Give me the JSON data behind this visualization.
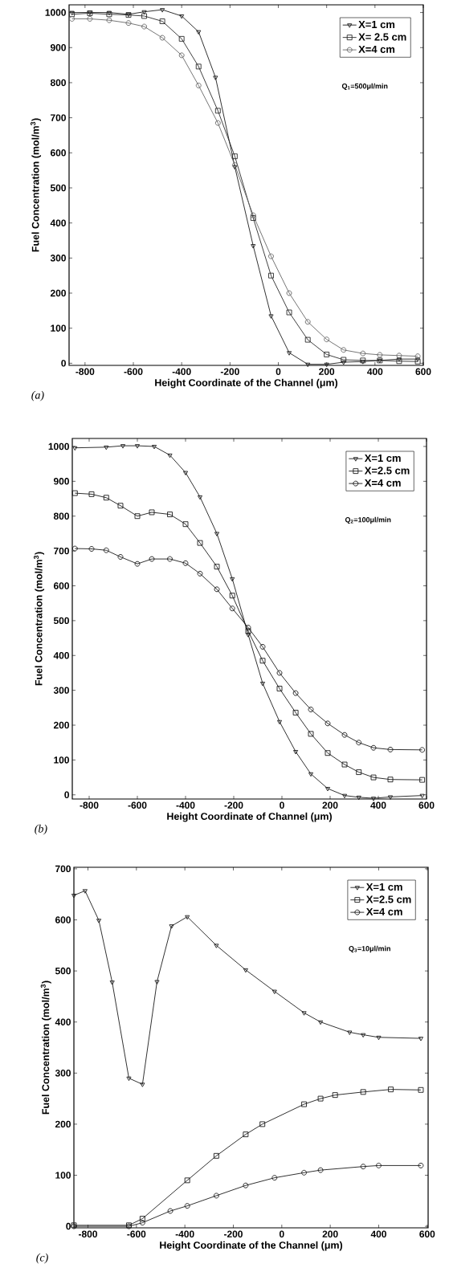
{
  "chart_data": [
    {
      "type": "line",
      "xlabel": "Height Coordinate of the Channel (μm)",
      "ylabel": "Fuel Concentration (mol/m$^{3}$)",
      "xlim": [
        -866,
        600
      ],
      "ylim": [
        -6,
        1022
      ],
      "xticks": [
        -800,
        -600,
        -400,
        -200,
        0,
        200,
        400,
        600
      ],
      "yticks": [
        0,
        100,
        200,
        300,
        400,
        500,
        600,
        700,
        800,
        900,
        1000
      ],
      "legend": "top right",
      "grid": false,
      "annotations": [
        "Q$_{1}$=500μl/min",
        "(a)"
      ],
      "series": [
        {
          "name": "X=1 cm",
          "color": "#1a1a1a",
          "marker": "triangle",
          "x": [
            -854,
            -780,
            -700,
            -620,
            -555,
            -480,
            -400,
            -330,
            -260,
            -180,
            -104,
            -30,
            45,
            122,
            200,
            270,
            350,
            420,
            500,
            577
          ],
          "values": [
            1000,
            1000,
            1000,
            995,
            1002,
            1008,
            990,
            945,
            815,
            560,
            335,
            135,
            30,
            -3,
            -3,
            3,
            5,
            8,
            12,
            12
          ]
        },
        {
          "name": "X= 2.5 cm",
          "color": "#2a2a2a",
          "marker": "square",
          "x": [
            -854,
            -780,
            -700,
            -620,
            -555,
            -480,
            -400,
            -330,
            -250,
            -180,
            -104,
            -30,
            45,
            122,
            200,
            270,
            350,
            420,
            500,
            577
          ],
          "values": [
            995,
            998,
            995,
            993,
            990,
            975,
            925,
            846,
            720,
            590,
            414,
            250,
            145,
            67,
            25,
            10,
            8,
            8,
            6,
            5
          ]
        },
        {
          "name": "X=4 cm",
          "color": "#666666",
          "marker": "diamond",
          "x": [
            -854,
            -780,
            -700,
            -620,
            -555,
            -480,
            -400,
            -330,
            -250,
            -180,
            -104,
            -30,
            45,
            122,
            200,
            270,
            350,
            420,
            500,
            577
          ],
          "values": [
            982,
            982,
            978,
            970,
            960,
            928,
            878,
            792,
            685,
            565,
            422,
            305,
            200,
            118,
            68,
            38,
            28,
            24,
            22,
            20
          ]
        }
      ]
    },
    {
      "type": "line",
      "xlabel": "Height Coordinate of Channel (μm)",
      "ylabel": "Fuel Concentration (mol/m$^{3}$)",
      "xlim": [
        -870,
        600
      ],
      "ylim": [
        -12,
        1023
      ],
      "xticks": [
        -800,
        -600,
        -400,
        -200,
        0,
        200,
        400,
        600
      ],
      "yticks": [
        0,
        100,
        200,
        300,
        400,
        500,
        600,
        700,
        800,
        900,
        1000
      ],
      "legend": "top right",
      "grid": false,
      "annotations": [
        "Q$_{2}$=100μl/min",
        "(b)"
      ],
      "series": [
        {
          "name": "X=1 cm",
          "color": "#1a1a1a",
          "marker": "triangle",
          "x": [
            -859,
            -729,
            -660,
            -600,
            -530,
            -465,
            -400,
            -340,
            -270,
            -206,
            -140,
            -80,
            -10,
            57,
            120,
            190,
            260,
            319,
            380,
            450,
            582
          ],
          "values": [
            996,
            998,
            1002,
            1002,
            1000,
            975,
            925,
            855,
            750,
            620,
            460,
            320,
            210,
            124,
            60,
            18,
            -2,
            -7,
            -10,
            -6,
            -2
          ]
        },
        {
          "name": "X=2.5 cm",
          "color": "#1a1a1a",
          "marker": "square",
          "x": [
            -859,
            -790,
            -729,
            -670,
            -600,
            -540,
            -465,
            -400,
            -340,
            -270,
            -206,
            -140,
            -80,
            -10,
            57,
            120,
            190,
            260,
            319,
            380,
            450,
            582
          ],
          "values": [
            866,
            863,
            853,
            830,
            800,
            811,
            805,
            777,
            723,
            655,
            572,
            470,
            385,
            305,
            236,
            175,
            120,
            87,
            65,
            50,
            44,
            43
          ]
        },
        {
          "name": "X=4 cm",
          "color": "#1a1a1a",
          "marker": "diamond",
          "x": [
            -859,
            -790,
            -729,
            -670,
            -600,
            -540,
            -465,
            -400,
            -340,
            -270,
            -206,
            -140,
            -80,
            -10,
            57,
            120,
            190,
            260,
            319,
            380,
            450,
            582
          ],
          "values": [
            707,
            706,
            702,
            683,
            663,
            677,
            677,
            665,
            635,
            590,
            535,
            480,
            425,
            350,
            292,
            245,
            205,
            172,
            150,
            135,
            130,
            129
          ]
        }
      ]
    },
    {
      "type": "line",
      "xlabel": "Height Coordinate of the Channel (μm)",
      "ylabel": "Fuel Concentration (mol/m$^{3}$)",
      "xlim": [
        -858,
        604
      ],
      "ylim": [
        -3,
        703
      ],
      "xticks": [
        -800,
        -600,
        -400,
        -200,
        0,
        200,
        400,
        600
      ],
      "yticks": [
        0,
        100,
        200,
        300,
        400,
        500,
        600,
        700
      ],
      "legend": "top right",
      "grid": false,
      "annotations": [
        "Q$_{3}$=10μl/min",
        "(c)"
      ],
      "series": [
        {
          "name": "X=1 cm",
          "color": "#1a1a1a",
          "marker": "triangle",
          "x": [
            -858,
            -812,
            -755,
            -700,
            -631,
            -575,
            -515,
            -455,
            -390,
            -270,
            -149,
            -30,
            92,
            160,
            280,
            336,
            400,
            574
          ],
          "values": [
            648,
            657,
            599,
            478,
            290,
            278,
            479,
            588,
            606,
            550,
            502,
            460,
            418,
            400,
            380,
            375,
            370,
            368
          ]
        },
        {
          "name": "X=2.5 cm",
          "color": "#1a1a1a",
          "marker": "square",
          "x": [
            -858,
            -631,
            -575,
            -390,
            -270,
            -149,
            -80,
            92,
            160,
            220,
            336,
            450,
            574
          ],
          "values": [
            2,
            2,
            15,
            90,
            138,
            180,
            200,
            239,
            250,
            257,
            263,
            268,
            267
          ]
        },
        {
          "name": "X=4 cm",
          "color": "#1a1a1a",
          "marker": "diamond",
          "x": [
            -858,
            -631,
            -575,
            -460,
            -390,
            -270,
            -149,
            -30,
            92,
            160,
            336,
            400,
            574
          ],
          "values": [
            0,
            0,
            7,
            30,
            40,
            60,
            80,
            95,
            105,
            110,
            117,
            119,
            119
          ]
        }
      ]
    }
  ]
}
